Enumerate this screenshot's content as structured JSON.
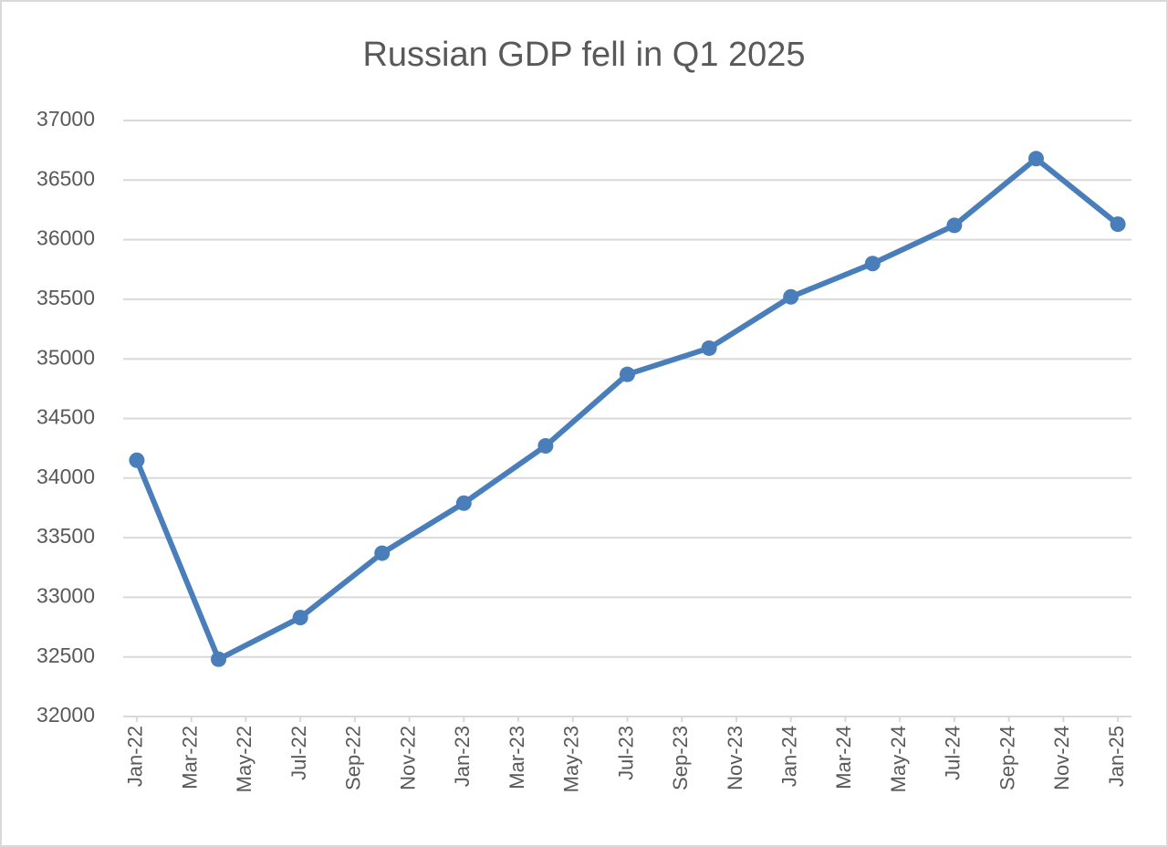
{
  "chart_data": {
    "type": "line",
    "title": "Russian GDP fell in Q1 2025",
    "x": [
      "2022-01",
      "2022-04",
      "2022-07",
      "2022-10",
      "2023-01",
      "2023-04",
      "2023-07",
      "2023-10",
      "2024-01",
      "2024-04",
      "2024-07",
      "2024-10",
      "2025-01"
    ],
    "series": [
      {
        "color": "#4a7ebb",
        "values": [
          34150,
          32480,
          32830,
          33370,
          33790,
          34270,
          34870,
          35090,
          35520,
          35800,
          36120,
          36680,
          36130
        ]
      }
    ],
    "xlim": [
      "2022-01",
      "2025-01"
    ],
    "xticks": [
      {
        "value": "2022-01",
        "label": "Jan-22"
      },
      {
        "value": "2022-03",
        "label": "Mar-22"
      },
      {
        "value": "2022-05",
        "label": "May-22"
      },
      {
        "value": "2022-07",
        "label": "Jul-22"
      },
      {
        "value": "2022-09",
        "label": "Sep-22"
      },
      {
        "value": "2022-11",
        "label": "Nov-22"
      },
      {
        "value": "2023-01",
        "label": "Jan-23"
      },
      {
        "value": "2023-03",
        "label": "Mar-23"
      },
      {
        "value": "2023-05",
        "label": "May-23"
      },
      {
        "value": "2023-07",
        "label": "Jul-23"
      },
      {
        "value": "2023-09",
        "label": "Sep-23"
      },
      {
        "value": "2023-11",
        "label": "Nov-23"
      },
      {
        "value": "2024-01",
        "label": "Jan-24"
      },
      {
        "value": "2024-03",
        "label": "Mar-24"
      },
      {
        "value": "2024-05",
        "label": "May-24"
      },
      {
        "value": "2024-07",
        "label": "Jul-24"
      },
      {
        "value": "2024-09",
        "label": "Sep-24"
      },
      {
        "value": "2024-11",
        "label": "Nov-24"
      },
      {
        "value": "2025-01",
        "label": "Jan-25"
      }
    ],
    "ylim": [
      32000,
      37000
    ],
    "yticks": [
      32000,
      32500,
      33000,
      33500,
      34000,
      34500,
      35000,
      35500,
      36000,
      36500,
      37000
    ],
    "grid": true
  }
}
